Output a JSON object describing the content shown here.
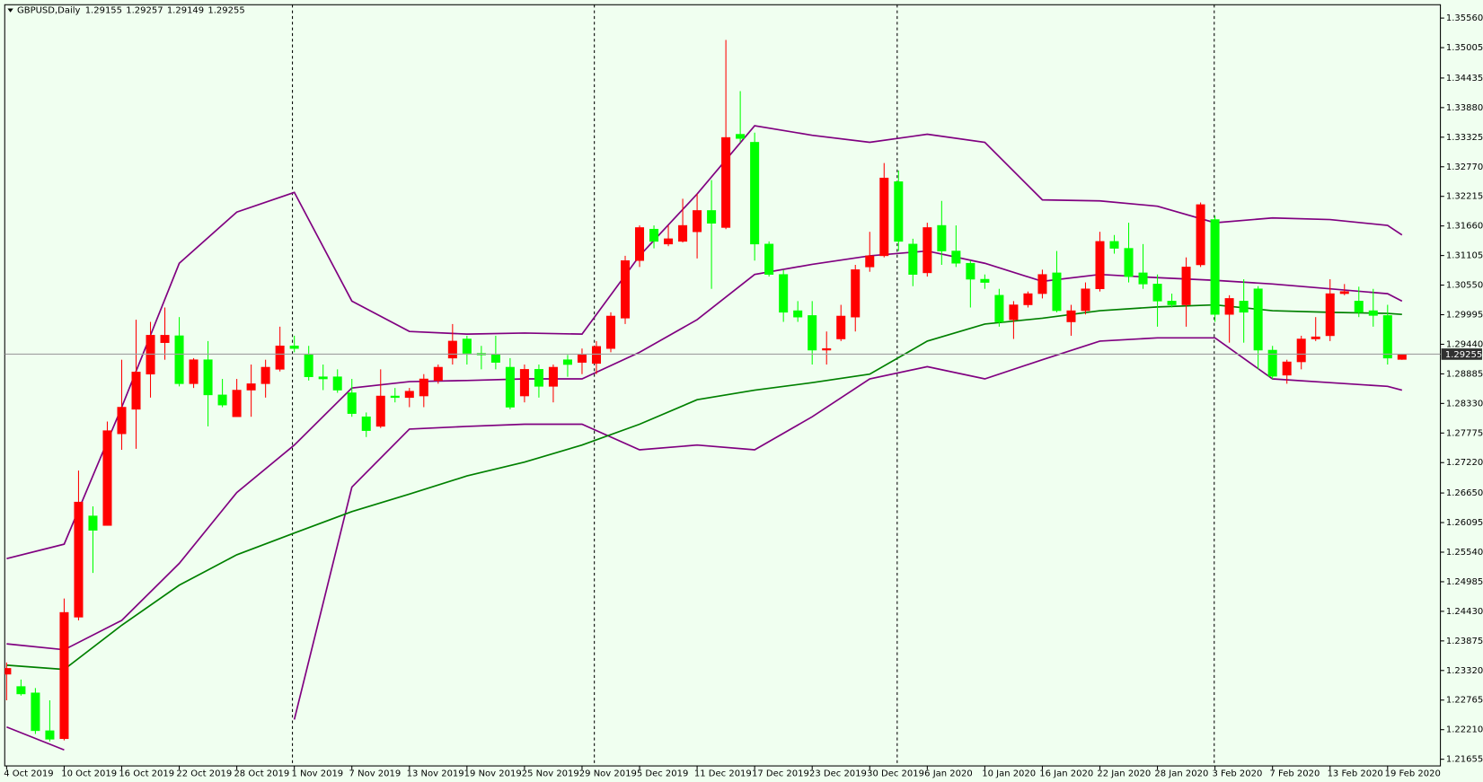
{
  "chart_data": {
    "type": "candlestick",
    "title": "GBPUSD,Daily",
    "categories": [
      "4 Oct 2019",
      null,
      null,
      null,
      "10 Oct 2019",
      null,
      null,
      null,
      "16 Oct 2019",
      null,
      null,
      null,
      "22 Oct 2019",
      null,
      null,
      null,
      "28 Oct 2019",
      null,
      null,
      null,
      "1 Nov 2019",
      null,
      null,
      null,
      "7 Nov 2019",
      null,
      null,
      null,
      "13 Nov 2019",
      null,
      null,
      null,
      "19 Nov 2019",
      null,
      null,
      null,
      "25 Nov 2019",
      null,
      null,
      null,
      "29 Nov 2019",
      null,
      null,
      null,
      "5 Dec 2019",
      null,
      null,
      null,
      "11 Dec 2019",
      null,
      null,
      null,
      "17 Dec 2019",
      null,
      null,
      null,
      "23 Dec 2019",
      null,
      null,
      null,
      "30 Dec 2019",
      null,
      null,
      null,
      "6 Jan 2020",
      null,
      null,
      null,
      "10 Jan 2020",
      null,
      null,
      null,
      "16 Jan 2020",
      null,
      null,
      null,
      "22 Jan 2020",
      null,
      null,
      null,
      "28 Jan 2020",
      null,
      null,
      null,
      "3 Feb 2020",
      null,
      null,
      null,
      "7 Feb 2020",
      null,
      null,
      null,
      "13 Feb 2020",
      null,
      null,
      null,
      "19 Feb 2020",
      null
    ],
    "open": [
      1.2325,
      1.2302,
      1.229,
      1.2219,
      1.2204,
      1.2432,
      1.2622,
      1.2604,
      1.2776,
      1.2822,
      1.2888,
      1.2947,
      1.296,
      1.287,
      1.2915,
      1.2849,
      1.2808,
      1.2858,
      1.287,
      1.2897,
      1.2941,
      1.2924,
      1.2883,
      1.2883,
      1.2853,
      1.2808,
      1.279,
      1.2847,
      1.2844,
      1.2847,
      1.2876,
      1.2918,
      1.2954,
      1.2927,
      1.2924,
      1.2901,
      1.2847,
      1.2897,
      1.2865,
      1.2915,
      1.291,
      1.2908,
      1.2936,
      1.2993,
      1.3101,
      1.316,
      1.3132,
      1.3137,
      1.3155,
      1.3195,
      1.3163,
      1.3338,
      1.3323,
      1.3132,
      1.3075,
      1.3007,
      1.2998,
      1.2933,
      1.2954,
      1.2995,
      1.3089,
      1.311,
      1.3249,
      1.3132,
      1.3078,
      1.3167,
      1.3119,
      1.3096,
      1.3066,
      1.3036,
      1.299,
      1.3018,
      1.3039,
      1.3078,
      1.2986,
      1.3007,
      1.3048,
      1.3137,
      1.3124,
      1.3078,
      1.3057,
      1.3025,
      1.3018,
      1.3093,
      1.3178,
      1.3,
      1.3025,
      1.3048,
      1.2933,
      1.2886,
      1.2911,
      1.2954,
      1.296,
      1.3039,
      1.3025,
      1.3007,
      1.2998,
      1.29155
    ],
    "high": [
      1.2347,
      1.2315,
      1.2299,
      1.2276,
      1.2467,
      1.2707,
      1.264,
      1.2799,
      1.2915,
      1.299,
      1.2986,
      1.3013,
      1.2995,
      1.2918,
      1.295,
      1.2879,
      1.2879,
      1.2906,
      1.2915,
      1.2977,
      1.296,
      1.2941,
      1.2906,
      1.2897,
      1.2879,
      1.2816,
      1.2897,
      1.2862,
      1.2862,
      1.2888,
      1.2906,
      1.2982,
      1.296,
      1.2941,
      1.296,
      1.2918,
      1.2906,
      1.2906,
      1.2906,
      1.2924,
      1.2936,
      1.295,
      1.3004,
      1.311,
      1.3167,
      1.3167,
      1.3167,
      1.3217,
      1.3226,
      1.3252,
      1.3515,
      1.3419,
      1.3341,
      1.3137,
      1.3084,
      1.3025,
      1.3025,
      1.2968,
      1.3018,
      1.3093,
      1.3155,
      1.3284,
      1.327,
      1.3142,
      1.3172,
      1.3213,
      1.3167,
      1.3101,
      1.3075,
      1.3048,
      1.3025,
      1.3043,
      1.3084,
      1.3119,
      1.3018,
      1.306,
      1.3155,
      1.3149,
      1.3172,
      1.3132,
      1.3075,
      1.3039,
      1.3107,
      1.321,
      1.3185,
      1.3036,
      1.3066,
      1.3053,
      1.2941,
      1.2915,
      1.296,
      1.2995,
      1.3066,
      1.3057,
      1.3052,
      1.3048,
      1.3018,
      1.29257
    ],
    "low": [
      1.2276,
      1.2285,
      1.2213,
      1.2199,
      1.2201,
      1.2426,
      1.2515,
      1.2604,
      1.2746,
      1.2748,
      1.2844,
      1.2915,
      1.2865,
      1.2862,
      1.279,
      1.2826,
      1.2808,
      1.2808,
      1.2844,
      1.2893,
      1.2929,
      1.2876,
      1.2858,
      1.2853,
      1.2808,
      1.277,
      1.2787,
      1.2835,
      1.2826,
      1.2826,
      1.287,
      1.2906,
      1.2906,
      1.2897,
      1.2897,
      1.2822,
      1.2835,
      1.2844,
      1.2835,
      1.2883,
      1.2888,
      1.2888,
      1.2929,
      1.2982,
      1.3089,
      1.3124,
      1.3128,
      1.3135,
      1.3105,
      1.3048,
      1.316,
      1.3323,
      1.3101,
      1.3071,
      1.2986,
      1.2986,
      1.2906,
      1.2906,
      1.295,
      1.2968,
      1.308,
      1.3107,
      1.3119,
      1.3053,
      1.3071,
      1.3093,
      1.3089,
      1.3013,
      1.3048,
      1.2977,
      1.2954,
      1.3013,
      1.303,
      1.3004,
      1.296,
      1.3,
      1.3043,
      1.3114,
      1.306,
      1.3048,
      1.2977,
      1.3013,
      1.2977,
      1.3089,
      1.2986,
      1.2947,
      1.2947,
      1.2897,
      1.2879,
      1.287,
      1.2897,
      1.295,
      1.295,
      1.3036,
      1.2995,
      1.2977,
      1.2906,
      1.29149
    ],
    "close": [
      1.2336,
      1.2288,
      1.2219,
      1.2203,
      1.2441,
      1.2648,
      1.2595,
      1.2782,
      1.2826,
      1.2892,
      1.2961,
      1.2961,
      1.287,
      1.2915,
      1.2849,
      1.283,
      1.2858,
      1.287,
      1.2901,
      1.2941,
      1.2936,
      1.2883,
      1.2879,
      1.2858,
      1.2814,
      1.2782,
      1.2847,
      1.2844,
      1.2856,
      1.2879,
      1.2901,
      1.295,
      1.2927,
      1.2924,
      1.291,
      1.2826,
      1.2897,
      1.2865,
      1.2901,
      1.2906,
      1.2924,
      1.294,
      1.2997,
      1.3101,
      1.3163,
      1.3137,
      1.3142,
      1.3167,
      1.3195,
      1.3171,
      1.3332,
      1.333,
      1.3132,
      1.3075,
      1.3004,
      1.2995,
      1.2933,
      1.2936,
      1.2997,
      1.3084,
      1.311,
      1.3256,
      1.3137,
      1.3075,
      1.3163,
      1.3119,
      1.3096,
      1.3066,
      1.306,
      1.2986,
      1.3018,
      1.3039,
      1.3075,
      1.3007,
      1.3007,
      1.3048,
      1.3137,
      1.3124,
      1.3071,
      1.3057,
      1.3025,
      1.3018,
      1.3089,
      1.3206,
      1.3,
      1.303,
      1.3004,
      1.2933,
      1.2884,
      1.2911,
      1.2954,
      1.2958,
      1.3039,
      1.3043,
      1.3004,
      1.2998,
      1.2918,
      1.29255
    ],
    "up_color": "#ff0000",
    "down_color": "#00ff00",
    "background": "#f0fff0",
    "grid": false,
    "ylim": [
      1.2153,
      1.3581
    ],
    "yticks": [
      {
        "value": 1.3556,
        "label": "1.35560"
      },
      1.35005,
      1.34435,
      {
        "value": 1.3388,
        "label": "1.33880"
      },
      1.33325,
      {
        "value": 1.3277,
        "label": "1.32770"
      },
      1.32215,
      {
        "value": 1.3166,
        "label": "1.31660"
      },
      1.31105,
      {
        "value": 1.3055,
        "label": "1.30550"
      },
      1.29995,
      {
        "value": 1.2944,
        "label": "1.29440"
      },
      1.28885,
      {
        "value": 1.2833,
        "label": "1.28330"
      },
      1.27775,
      {
        "value": 1.2722,
        "label": "1.27220"
      },
      {
        "value": 1.2665,
        "label": "1.26650"
      },
      1.26095,
      {
        "value": 1.2554,
        "label": "1.25540"
      },
      1.24985,
      {
        "value": 1.2443,
        "label": "1.24430"
      },
      1.23875,
      {
        "value": 1.2332,
        "label": "1.23320"
      },
      1.22765,
      {
        "value": 1.2221,
        "label": "1.22210"
      },
      1.21655
    ],
    "lines": [
      {
        "color": "#800080",
        "x": [
          0,
          4,
          8,
          12,
          16,
          20,
          24,
          28,
          32,
          36,
          40,
          44,
          48,
          52,
          56,
          60,
          64,
          68,
          72,
          76,
          80,
          84,
          88,
          92,
          96,
          97
        ],
        "values": [
          1.2542,
          1.2569,
          1.2826,
          1.3096,
          1.3192,
          1.3229,
          1.3025,
          1.2968,
          1.2963,
          1.2965,
          1.2963,
          1.311,
          1.3226,
          1.3354,
          1.3336,
          1.3323,
          1.3338,
          1.3323,
          1.3215,
          1.3213,
          1.3203,
          1.3172,
          1.3181,
          1.3178,
          1.3167,
          1.3149
        ]
      },
      {
        "color": "#800080",
        "x": [
          0,
          4,
          8,
          12,
          16,
          20,
          24,
          28,
          32,
          36,
          40,
          44,
          48,
          52,
          56,
          60,
          64,
          68,
          72,
          76,
          80,
          84,
          88,
          92,
          96,
          97
        ],
        "values": [
          1.2382,
          1.2371,
          1.2426,
          1.2533,
          1.2666,
          1.2755,
          1.2862,
          1.2874,
          1.2876,
          1.2879,
          1.2879,
          1.2929,
          1.299,
          1.3075,
          1.3094,
          1.311,
          1.3119,
          1.3096,
          1.3062,
          1.3075,
          1.3069,
          1.3064,
          1.3057,
          1.3048,
          1.3039,
          1.3025
        ]
      },
      {
        "color": "#800080",
        "x": [
          0,
          4,
          8,
          12,
          16,
          20,
          24,
          28,
          32,
          36,
          40,
          44,
          48,
          52,
          56,
          60,
          64,
          68,
          72,
          76,
          80,
          84,
          88,
          92,
          96,
          97
        ],
        "values": [
          1.2226,
          1.2183,
          null,
          null,
          null,
          1.224,
          1.2676,
          1.2785,
          1.279,
          1.2794,
          1.2794,
          1.2746,
          1.2755,
          1.2746,
          1.2808,
          1.2879,
          1.2902,
          1.2879,
          1.2915,
          1.295,
          1.2956,
          1.2956,
          1.2879,
          1.2872,
          1.2865,
          1.2858
        ]
      },
      {
        "color": "#008000",
        "x": [
          0,
          4,
          8,
          12,
          16,
          20,
          24,
          28,
          32,
          36,
          40,
          44,
          48,
          52,
          56,
          60,
          64,
          68,
          72,
          76,
          80,
          84,
          88,
          92,
          96,
          97
        ],
        "values": [
          1.2342,
          1.2334,
          1.2417,
          1.2492,
          1.2549,
          1.259,
          1.263,
          1.2663,
          1.2697,
          1.2723,
          1.2755,
          1.2794,
          1.284,
          1.2858,
          1.2872,
          1.2888,
          1.295,
          1.2982,
          1.2993,
          1.3007,
          1.3014,
          1.3018,
          1.3007,
          1.3004,
          1.3002,
          1.3
        ]
      }
    ]
  }
}
